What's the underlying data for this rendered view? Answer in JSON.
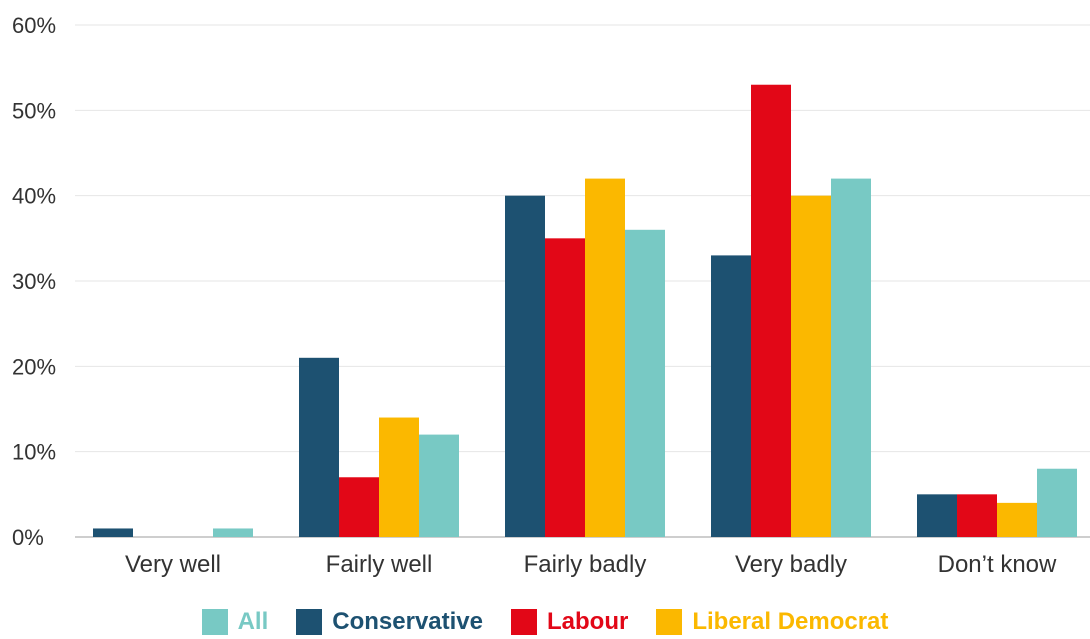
{
  "chart_data": {
    "type": "bar",
    "title": "",
    "xlabel": "",
    "ylabel": "",
    "categories": [
      "Very well",
      "Fairly well",
      "Fairly badly",
      "Very badly",
      "Don’t know"
    ],
    "series": [
      {
        "name": "Conservative",
        "color": "#1d5171",
        "values": [
          1,
          21,
          40,
          33,
          5
        ]
      },
      {
        "name": "Labour",
        "color": "#e20717",
        "values": [
          0,
          7,
          35,
          53,
          5
        ]
      },
      {
        "name": "Liberal Democrat",
        "color": "#fbb800",
        "values": [
          0,
          14,
          42,
          40,
          4
        ]
      },
      {
        "name": "All",
        "color": "#78c9c4",
        "values": [
          1,
          12,
          36,
          42,
          8
        ]
      }
    ],
    "ylim": [
      0,
      60
    ],
    "yticks": [
      0,
      10,
      20,
      30,
      40,
      50,
      60
    ],
    "ytick_labels": [
      "0%",
      "10%",
      "20%",
      "30%",
      "40%",
      "50%",
      "60%"
    ],
    "grid": true,
    "legend": {
      "placement": "bottom",
      "order": [
        "All",
        "Conservative",
        "Labour",
        "Liberal Democrat"
      ]
    }
  }
}
